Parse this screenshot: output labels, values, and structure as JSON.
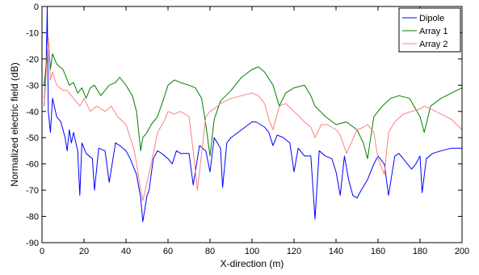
{
  "chart_data": {
    "type": "line",
    "title": "",
    "xlabel": "X-direction (m)",
    "ylabel": "Normalized electric field (dB)",
    "xlim": [
      0,
      200
    ],
    "ylim": [
      -90,
      0
    ],
    "xticks": [
      0,
      20,
      40,
      60,
      80,
      100,
      120,
      140,
      160,
      180,
      200
    ],
    "yticks": [
      0,
      -10,
      -20,
      -30,
      -40,
      -50,
      -60,
      -70,
      -80,
      -90
    ],
    "grid": false,
    "legend_position": "top-right",
    "series": [
      {
        "name": "Dipole",
        "color": "#0000ff",
        "x": [
          1,
          2,
          2.5,
          3,
          4,
          5,
          7,
          9,
          11,
          12,
          13,
          14,
          15,
          17,
          18,
          19,
          21,
          24,
          25,
          27,
          30,
          32,
          35,
          37,
          40,
          42,
          45,
          47,
          48,
          50,
          51,
          53,
          55,
          57,
          60,
          62,
          64,
          66,
          70,
          72,
          75,
          78,
          80,
          82,
          85,
          86,
          88,
          90,
          95,
          100,
          102,
          104,
          106,
          108,
          110,
          112,
          115,
          118,
          120,
          122,
          125,
          128,
          130,
          132,
          135,
          138,
          140,
          142,
          144,
          146,
          148,
          150,
          152,
          155,
          158,
          160,
          163,
          165,
          168,
          170,
          173,
          176,
          178,
          180,
          181,
          183,
          186,
          190,
          195,
          200
        ],
        "y": [
          -38,
          -22,
          0,
          -40,
          -48,
          -35,
          -42,
          -44,
          -50,
          -55,
          -47,
          -52,
          -48,
          -55,
          -72,
          -52,
          -56,
          -58,
          -70,
          -54,
          -55,
          -67,
          -52,
          -53,
          -55,
          -58,
          -64,
          -73,
          -82,
          -72,
          -70,
          -58,
          -55,
          -56,
          -58,
          -60,
          -55,
          -56,
          -56,
          -68,
          -53,
          -55,
          -63,
          -50,
          -54,
          -69,
          -52,
          -50,
          -47,
          -44,
          -44,
          -45,
          -46,
          -48,
          -53,
          -49,
          -50,
          -52,
          -63,
          -54,
          -57,
          -57,
          -81,
          -55,
          -57,
          -58,
          -63,
          -72,
          -57,
          -66,
          -72,
          -73,
          -70,
          -66,
          -60,
          -57,
          -60,
          -72,
          -57,
          -56,
          -59,
          -62,
          -60,
          -57,
          -71,
          -58,
          -56,
          -55,
          -54,
          -54
        ]
      },
      {
        "name": "Array 1",
        "color": "#008000",
        "x": [
          1,
          2,
          3,
          4,
          5,
          7,
          10,
          13,
          15,
          17,
          19,
          21,
          23,
          25,
          28,
          30,
          32,
          35,
          37,
          40,
          43,
          45,
          47,
          48,
          50,
          52,
          55,
          58,
          60,
          63,
          66,
          70,
          73,
          76,
          78,
          80,
          82,
          85,
          90,
          95,
          100,
          103,
          106,
          110,
          113,
          116,
          120,
          125,
          128,
          130,
          135,
          140,
          145,
          150,
          153,
          155,
          158,
          162,
          166,
          170,
          175,
          180,
          182,
          185,
          190,
          195,
          200
        ],
        "y": [
          -30,
          -22,
          -12,
          -24,
          -18,
          -22,
          -24,
          -30,
          -29,
          -33,
          -31,
          -35,
          -31,
          -30,
          -34,
          -32,
          -30,
          -29,
          -27,
          -30,
          -34,
          -40,
          -55,
          -50,
          -48,
          -45,
          -42,
          -35,
          -30,
          -28,
          -29,
          -30,
          -31,
          -35,
          -45,
          -57,
          -43,
          -36,
          -32,
          -27,
          -24,
          -23,
          -25,
          -30,
          -38,
          -33,
          -31,
          -30,
          -34,
          -38,
          -42,
          -45,
          -44,
          -47,
          -52,
          -58,
          -42,
          -38,
          -35,
          -34,
          -35,
          -42,
          -48,
          -38,
          -35,
          -33,
          -31
        ]
      },
      {
        "name": "Array 2",
        "color": "#ff8080",
        "x": [
          1,
          2,
          3,
          4,
          5,
          7,
          10,
          12,
          15,
          18,
          20,
          23,
          26,
          30,
          33,
          36,
          40,
          44,
          46,
          47,
          48,
          50,
          52,
          55,
          58,
          60,
          63,
          66,
          70,
          72,
          74,
          78,
          80,
          82,
          85,
          90,
          95,
          100,
          103,
          106,
          108,
          110,
          113,
          116,
          120,
          125,
          128,
          130,
          133,
          136,
          140,
          142,
          145,
          150,
          153,
          155,
          158,
          160,
          163,
          165,
          168,
          172,
          176,
          180,
          182,
          185,
          190,
          195,
          200
        ],
        "y": [
          -38,
          -25,
          -12,
          -28,
          -25,
          -30,
          -32,
          -32,
          -35,
          -38,
          -35,
          -40,
          -38,
          -40,
          -38,
          -42,
          -45,
          -55,
          -65,
          -70,
          -74,
          -67,
          -60,
          -48,
          -44,
          -40,
          -41,
          -40,
          -42,
          -55,
          -70,
          -42,
          -40,
          -39,
          -37,
          -35,
          -34,
          -33,
          -34,
          -37,
          -43,
          -47,
          -38,
          -37,
          -40,
          -44,
          -46,
          -50,
          -45,
          -45,
          -47,
          -49,
          -56,
          -47,
          -46,
          -45,
          -48,
          -58,
          -64,
          -48,
          -44,
          -41,
          -40,
          -39,
          -38,
          -39,
          -41,
          -43,
          -47
        ]
      }
    ]
  }
}
